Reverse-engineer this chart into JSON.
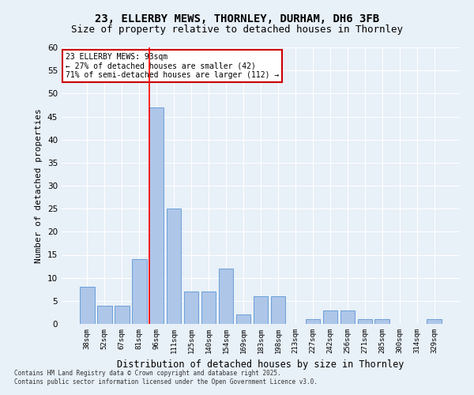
{
  "title_line1": "23, ELLERBY MEWS, THORNLEY, DURHAM, DH6 3FB",
  "title_line2": "Size of property relative to detached houses in Thornley",
  "xlabel": "Distribution of detached houses by size in Thornley",
  "ylabel": "Number of detached properties",
  "footer": "Contains HM Land Registry data © Crown copyright and database right 2025.\nContains public sector information licensed under the Open Government Licence v3.0.",
  "categories": [
    "38sqm",
    "52sqm",
    "67sqm",
    "81sqm",
    "96sqm",
    "111sqm",
    "125sqm",
    "140sqm",
    "154sqm",
    "169sqm",
    "183sqm",
    "198sqm",
    "213sqm",
    "227sqm",
    "242sqm",
    "256sqm",
    "271sqm",
    "285sqm",
    "300sqm",
    "314sqm",
    "329sqm"
  ],
  "values": [
    8,
    4,
    4,
    14,
    47,
    25,
    7,
    7,
    12,
    2,
    6,
    6,
    0,
    1,
    3,
    3,
    1,
    1,
    0,
    0,
    1
  ],
  "bar_color": "#aec6e8",
  "bar_edge_color": "#6a9fd8",
  "background_color": "#e8f0f8",
  "plot_bg_color": "#e8f0f8",
  "grid_color": "#ffffff",
  "red_line_x": 4,
  "annotation_text": "23 ELLERBY MEWS: 93sqm\n← 27% of detached houses are smaller (42)\n71% of semi-detached houses are larger (112) →",
  "annotation_box_color": "#ffffff",
  "annotation_box_edge": "#cc0000",
  "ylim": [
    0,
    60
  ],
  "yticks": [
    0,
    5,
    10,
    15,
    20,
    25,
    30,
    35,
    40,
    45,
    50,
    55,
    60
  ]
}
